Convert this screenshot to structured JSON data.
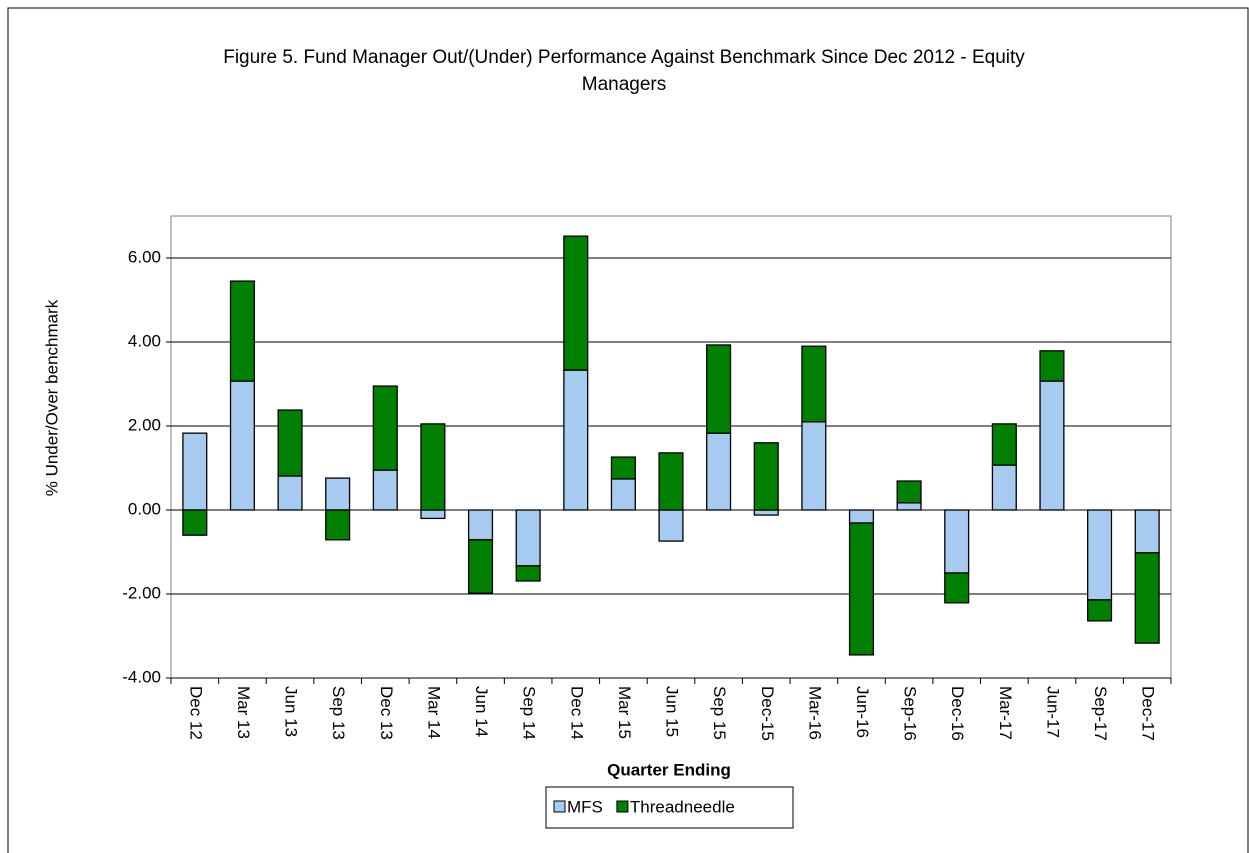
{
  "chart_data": {
    "type": "bar",
    "stacked": true,
    "title": "Figure 5.  Fund Manager Out/(Under) Performance Against Benchmark Since Dec 2012 - Equity Managers",
    "x_label": "Quarter Ending",
    "y_label": "% Under/Over benchmark",
    "categories": [
      "Dec 12",
      "Mar 13",
      "Jun 13",
      "Sep 13",
      "Dec 13",
      "Mar 14",
      "Jun 14",
      "Sep 14",
      "Dec 14",
      "Mar 15",
      "Jun 15",
      "Sep 15",
      "Dec-15",
      "Mar-16",
      "Jun-16",
      "Sep-16",
      "Dec-16",
      "Mar-17",
      "Jun-17",
      "Sep-17",
      "Dec-17"
    ],
    "series": [
      {
        "name": "MFS",
        "color": "#a6caf0",
        "values": [
          1.83,
          3.07,
          0.81,
          0.76,
          0.95,
          -0.2,
          -0.71,
          -1.33,
          3.33,
          0.74,
          -0.74,
          1.83,
          -0.12,
          2.1,
          -0.31,
          0.17,
          -1.5,
          1.07,
          3.07,
          -2.14,
          -1.02
        ]
      },
      {
        "name": "Threadneedle",
        "color": "#008000",
        "values": [
          -0.6,
          2.38,
          1.57,
          -0.71,
          2.0,
          2.05,
          -1.27,
          -0.36,
          3.19,
          0.52,
          1.36,
          2.1,
          1.6,
          1.8,
          -3.14,
          0.52,
          -0.71,
          0.98,
          0.72,
          -0.5,
          -2.15
        ]
      }
    ],
    "ylim": [
      -4,
      7
    ],
    "yticks": [
      {
        "value": -4,
        "label": "-4.00"
      },
      {
        "value": -2,
        "label": "-2.00"
      },
      {
        "value": 0,
        "label": "0.00"
      },
      {
        "value": 2,
        "label": "2.00"
      },
      {
        "value": 4,
        "label": "4.00"
      },
      {
        "value": 6,
        "label": "6.00"
      }
    ],
    "grid": true,
    "legend": "bottom"
  }
}
